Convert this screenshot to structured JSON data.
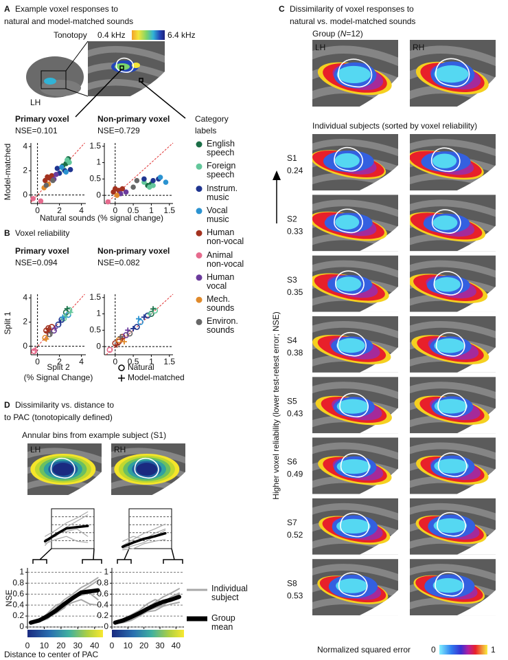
{
  "panels": {
    "A": {
      "letter": "A",
      "title_lines": [
        "Example voxel responses to",
        "natural and model-matched sounds"
      ],
      "tonotopy": {
        "label": "Tonotopy",
        "low": "0.4 kHz",
        "high": "6.4 kHz"
      },
      "hemisphere": "LH",
      "primary": {
        "name": "Primary voxel",
        "nse": "NSE=0.101"
      },
      "nonprimary": {
        "name": "Non-primary voxel",
        "nse": "NSE=0.729"
      },
      "ylabel": "Model-matched",
      "xlabel": "Natural sounds (% signal change)"
    },
    "legend": {
      "title_lines": [
        "Category",
        "labels"
      ],
      "items": [
        {
          "label": "English speech",
          "color": "#1b6e47"
        },
        {
          "label": "Foreign speech",
          "color": "#63c79b"
        },
        {
          "label": "Instrum. music",
          "color": "#1f3590"
        },
        {
          "label": "Vocal music",
          "color": "#2b93d1"
        },
        {
          "label": "Human non-vocal",
          "color": "#a3321f"
        },
        {
          "label": "Animal non-vocal",
          "color": "#e66b8e"
        },
        {
          "label": "Human vocal",
          "color": "#6b3b9c"
        },
        {
          "label": "Mech. sounds",
          "color": "#e08a2b"
        },
        {
          "label": "Environ. sounds",
          "color": "#676767"
        }
      ]
    },
    "B": {
      "letter": "B",
      "title": "Voxel reliability",
      "primary": {
        "name": "Primary voxel",
        "nse": "NSE=0.094"
      },
      "nonprimary": {
        "name": "Non-primary voxel",
        "nse": "NSE=0.082"
      },
      "ylabel": "Split 1",
      "xlabel_lines": [
        "Split 2",
        "(% Signal Change)"
      ]
    },
    "C": {
      "letter": "C",
      "title_lines": [
        "Dissimilarity of voxel responses to",
        "natural vs. model-matched sounds"
      ],
      "group": [
        "Group (",
        "N",
        "=12)"
      ],
      "hemispheres": [
        "LH",
        "RH"
      ],
      "individual": "Individual subjects (sorted by voxel reliability)",
      "subjects": [
        {
          "id": "S1",
          "reliability": 0.24
        },
        {
          "id": "S2",
          "reliability": 0.33
        },
        {
          "id": "S3",
          "reliability": 0.35
        },
        {
          "id": "S4",
          "reliability": 0.38
        },
        {
          "id": "S5",
          "reliability": 0.43
        },
        {
          "id": "S6",
          "reliability": 0.49
        },
        {
          "id": "S7",
          "reliability": 0.52
        },
        {
          "id": "S8",
          "reliability": 0.53
        }
      ],
      "arrow_label": "Higher voxel reliability (lower test-retest error; NSE)",
      "colorbar": {
        "label": "Normalized squared error",
        "low": 0,
        "high": 1
      }
    },
    "D": {
      "letter": "D",
      "title_lines": [
        "Dissimilarity vs. distance to",
        "to PAC (tonotopically defined)"
      ],
      "subtitle": "Annular bins from example subject (S1)",
      "hemispheres": [
        "LH",
        "RH"
      ],
      "ylabel": "NSE",
      "xlabel": "Distance to center of PAC"
    }
  },
  "chart_data": [
    {
      "type": "scatter",
      "xlim": [
        -0.6,
        4.4
      ],
      "ylim": [
        -0.7,
        4.3
      ],
      "xticks": [
        0,
        2,
        4
      ],
      "yticks": [
        0,
        2,
        4
      ],
      "series": [
        {
          "color": "#1b6e47",
          "x": [
            2.6,
            2.8,
            2.3
          ],
          "values": [
            2.6,
            3.0,
            2.4
          ]
        },
        {
          "color": "#63c79b",
          "x": [
            2.7,
            2.9,
            2.4
          ],
          "values": [
            2.9,
            2.7,
            2.1
          ]
        },
        {
          "color": "#1f3590",
          "x": [
            2.0,
            2.5,
            3.0,
            1.8
          ],
          "values": [
            1.8,
            2.0,
            2.1,
            2.2
          ]
        },
        {
          "color": "#2b93d1",
          "x": [
            2.2,
            2.6
          ],
          "values": [
            2.3,
            1.9
          ]
        },
        {
          "color": "#a3321f",
          "x": [
            0.9,
            1.1,
            0.7,
            1.3
          ],
          "values": [
            1.5,
            1.4,
            1.2,
            1.6
          ]
        },
        {
          "color": "#e66b8e",
          "x": [
            -0.4,
            0.3
          ],
          "values": [
            -0.3,
            -0.5
          ]
        },
        {
          "color": "#6b3b9c",
          "x": [
            1.5,
            1.7
          ],
          "values": [
            1.3,
            1.7
          ]
        },
        {
          "color": "#e08a2b",
          "x": [
            0.6,
            1.0
          ],
          "values": [
            0.6,
            0.9
          ]
        },
        {
          "color": "#676767",
          "x": [
            1.4,
            0.8
          ],
          "values": [
            1.2,
            0.8
          ]
        }
      ]
    },
    {
      "type": "scatter",
      "xlim": [
        -0.3,
        1.6
      ],
      "ylim": [
        -0.25,
        1.6
      ],
      "xticks": [
        0,
        0.5,
        1,
        1.5
      ],
      "yticks": [
        0,
        0.5,
        1,
        1.5
      ],
      "series": [
        {
          "color": "#1b6e47",
          "x": [
            0.9,
            1.0
          ],
          "values": [
            0.3,
            0.35
          ]
        },
        {
          "color": "#63c79b",
          "x": [
            0.8,
            0.95,
            1.05
          ],
          "values": [
            0.4,
            0.25,
            0.3
          ]
        },
        {
          "color": "#1f3590",
          "x": [
            0.8,
            1.05,
            1.2
          ],
          "values": [
            0.5,
            0.45,
            0.5
          ]
        },
        {
          "color": "#2b93d1",
          "x": [
            1.4,
            1.25
          ],
          "values": [
            0.4,
            0.55
          ]
        },
        {
          "color": "#a3321f",
          "x": [
            0.0,
            0.1,
            0.2,
            -0.05
          ],
          "values": [
            0.2,
            0.15,
            0.2,
            0.1
          ]
        },
        {
          "color": "#e66b8e",
          "x": [
            -0.2
          ],
          "values": [
            -0.2
          ]
        },
        {
          "color": "#6b3b9c",
          "x": [
            0.15,
            0.3
          ],
          "values": [
            0.05,
            0.1
          ]
        },
        {
          "color": "#e08a2b",
          "x": [
            0.05
          ],
          "values": [
            0.0
          ]
        },
        {
          "color": "#676767",
          "x": [
            0.6,
            0.5
          ],
          "values": [
            0.45,
            0.25
          ]
        }
      ]
    },
    {
      "type": "scatter",
      "xlim": [
        -0.6,
        4.4
      ],
      "ylim": [
        -0.7,
        4.3
      ],
      "xticks": [
        0,
        2,
        4
      ],
      "yticks": [
        0,
        2,
        4
      ],
      "series": [
        {
          "name": "Natural",
          "marker": "circle",
          "x": [
            2.6,
            2.9,
            2.4,
            2.2,
            2.8,
            1.9,
            1.0,
            0.8,
            1.3,
            -0.3,
            1.5,
            0.7,
            1.1
          ],
          "values": [
            2.8,
            3.0,
            2.3,
            2.2,
            2.6,
            1.8,
            1.5,
            1.3,
            1.6,
            -0.4,
            1.3,
            0.7,
            1.0
          ],
          "colors": [
            "#1b6e47",
            "#63c79b",
            "#63c79b",
            "#1f3590",
            "#2b93d1",
            "#1f3590",
            "#a3321f",
            "#a3321f",
            "#a3321f",
            "#e66b8e",
            "#6b3b9c",
            "#e08a2b",
            "#676767"
          ]
        },
        {
          "name": "Model-matched",
          "marker": "plus",
          "x": [
            2.7,
            3.0,
            2.5,
            2.1,
            2.3,
            1.0,
            0.9,
            -0.2,
            1.6,
            0.8,
            1.2
          ],
          "values": [
            3.1,
            2.8,
            2.5,
            2.0,
            2.4,
            1.4,
            1.2,
            -0.3,
            1.5,
            0.6,
            1.1
          ],
          "colors": [
            "#1b6e47",
            "#63c79b",
            "#63c79b",
            "#1f3590",
            "#2b93d1",
            "#a3321f",
            "#a3321f",
            "#e66b8e",
            "#6b3b9c",
            "#e08a2b",
            "#676767"
          ]
        }
      ]
    },
    {
      "type": "scatter",
      "xlim": [
        -0.3,
        1.6
      ],
      "ylim": [
        -0.25,
        1.6
      ],
      "xticks": [
        0,
        0.5,
        1,
        1.5
      ],
      "yticks": [
        0,
        0.5,
        1,
        1.5
      ],
      "series": [
        {
          "name": "Natural",
          "marker": "circle",
          "x": [
            1.0,
            1.1,
            0.9,
            0.7,
            0.6,
            0.1,
            0.2,
            0.0,
            -0.15,
            0.3,
            0.1,
            0.4
          ],
          "values": [
            1.0,
            1.1,
            0.95,
            0.75,
            0.6,
            0.15,
            0.3,
            0.1,
            -0.1,
            0.35,
            0.2,
            0.4
          ],
          "colors": [
            "#1b6e47",
            "#63c79b",
            "#1f3590",
            "#2b93d1",
            "#1f3590",
            "#a3321f",
            "#a3321f",
            "#a3321f",
            "#e66b8e",
            "#6b3b9c",
            "#e08a2b",
            "#676767"
          ]
        },
        {
          "name": "Model-matched",
          "marker": "plus",
          "x": [
            1.05,
            0.95,
            0.8,
            0.65,
            0.5,
            0.2,
            0.05,
            0.35,
            0.25,
            0.15
          ],
          "values": [
            1.15,
            1.0,
            0.9,
            0.85,
            0.55,
            0.25,
            0.05,
            0.5,
            0.15,
            0.3
          ],
          "colors": [
            "#1b6e47",
            "#63c79b",
            "#1f3590",
            "#2b93d1",
            "#1f3590",
            "#a3321f",
            "#a3321f",
            "#6b3b9c",
            "#e08a2b",
            "#676767"
          ]
        }
      ]
    },
    {
      "type": "line",
      "xlim": [
        0,
        45
      ],
      "ylim": [
        0,
        1.08
      ],
      "xticks": [
        0,
        10,
        20,
        30,
        40
      ],
      "yticks": [
        0,
        0.2,
        0.4,
        0.6,
        0.8,
        1
      ],
      "grid": true,
      "x": [
        2,
        7,
        12,
        17,
        22,
        27,
        32,
        37,
        42
      ],
      "series": [
        {
          "name": "Individual subject",
          "color": "#a8a8a8",
          "values": [
            [
              0.05,
              0.1,
              0.22,
              0.35,
              0.5,
              0.6,
              0.72,
              0.8,
              0.9
            ],
            [
              0.1,
              0.15,
              0.18,
              0.25,
              0.35,
              0.55,
              0.58,
              0.62,
              0.5
            ],
            [
              0.08,
              0.12,
              0.25,
              0.4,
              0.45,
              0.5,
              0.65,
              0.75,
              0.85
            ],
            [
              0.06,
              0.1,
              0.15,
              0.28,
              0.38,
              0.45,
              0.5,
              0.42,
              0.4
            ]
          ]
        },
        {
          "name": "Group mean",
          "color": "#000000",
          "values": [
            0.08,
            0.12,
            0.2,
            0.3,
            0.42,
            0.53,
            0.63,
            0.65,
            0.67
          ]
        }
      ]
    },
    {
      "type": "line",
      "xlim": [
        0,
        45
      ],
      "ylim": [
        0,
        1.08
      ],
      "xticks": [
        0,
        10,
        20,
        30,
        40
      ],
      "yticks": [
        0,
        0.2,
        0.4,
        0.6,
        0.8,
        1
      ],
      "grid": true,
      "x": [
        2,
        7,
        12,
        17,
        22,
        27,
        32,
        37,
        42
      ],
      "series": [
        {
          "name": "Individual subject",
          "color": "#a8a8a8",
          "values": [
            [
              0.05,
              0.1,
              0.15,
              0.25,
              0.35,
              0.45,
              0.55,
              0.62,
              0.7
            ],
            [
              0.1,
              0.12,
              0.2,
              0.22,
              0.3,
              0.35,
              0.4,
              0.5,
              0.6
            ],
            [
              0.08,
              0.15,
              0.22,
              0.3,
              0.42,
              0.5,
              0.45,
              0.55,
              0.62
            ],
            [
              0.06,
              0.08,
              0.12,
              0.2,
              0.28,
              0.3,
              0.38,
              0.42,
              0.45
            ]
          ]
        },
        {
          "name": "Group mean",
          "color": "#000000",
          "values": [
            0.08,
            0.12,
            0.18,
            0.25,
            0.33,
            0.4,
            0.46,
            0.5,
            0.55
          ]
        }
      ]
    }
  ]
}
